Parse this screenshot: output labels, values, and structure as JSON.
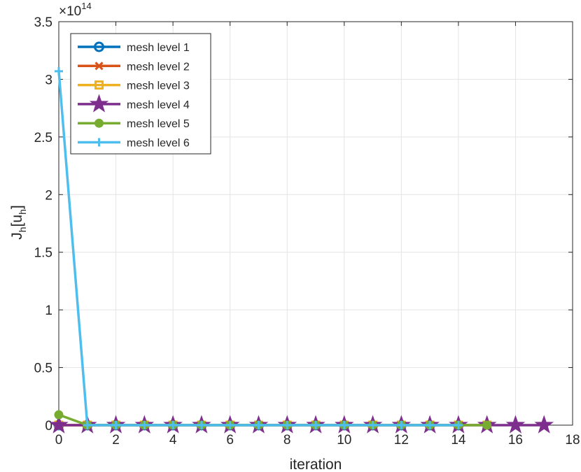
{
  "chart_data": {
    "type": "line",
    "title": "",
    "xlabel": "iteration",
    "ylabel": "J_h[u_h]",
    "ylabel_main": "J",
    "ylabel_sub1": "h",
    "ylabel_mid": "[u",
    "ylabel_sub2": "h",
    "ylabel_end": "]",
    "y_exponent_base": "×10",
    "y_exponent": "14",
    "y_scale_factor": 100000000000000.0,
    "xlim": [
      0,
      18
    ],
    "ylim": [
      0,
      3.5
    ],
    "xticks": [
      0,
      2,
      4,
      6,
      8,
      10,
      12,
      14,
      16,
      18
    ],
    "yticks": [
      0,
      0.5,
      1,
      1.5,
      2,
      2.5,
      3,
      3.5
    ],
    "ytick_labels": [
      "0",
      "0.5",
      "1",
      "1.5",
      "2",
      "2.5",
      "3",
      "3.5"
    ],
    "grid": true,
    "legend_position": "top-left",
    "series": [
      {
        "name": "mesh level 1",
        "color": "#0072BD",
        "marker": "circle",
        "x": [
          0,
          1,
          2,
          3,
          4,
          5,
          6,
          7,
          8,
          9,
          10,
          11,
          12,
          13,
          14
        ],
        "y": [
          0,
          0,
          0,
          0,
          0,
          0,
          0,
          0,
          0,
          0,
          0,
          0,
          0,
          0,
          0
        ]
      },
      {
        "name": "mesh level 2",
        "color": "#D95319",
        "marker": "x-cross",
        "x": [
          0,
          1,
          2,
          3,
          4,
          5,
          6,
          7,
          8,
          9,
          10,
          11,
          12,
          13,
          14
        ],
        "y": [
          0,
          0,
          0,
          0,
          0,
          0,
          0,
          0,
          0,
          0,
          0,
          0,
          0,
          0,
          0
        ]
      },
      {
        "name": "mesh level 3",
        "color": "#EDB120",
        "marker": "square",
        "x": [
          0,
          1,
          2,
          3,
          4,
          5,
          6,
          7,
          8,
          9,
          10,
          11,
          12,
          13,
          14,
          15
        ],
        "y": [
          0,
          0,
          0,
          0,
          0,
          0,
          0,
          0,
          0,
          0,
          0,
          0,
          0,
          0,
          0,
          0
        ]
      },
      {
        "name": "mesh level 4",
        "color": "#7E2F8E",
        "marker": "pentagram",
        "x": [
          0,
          1,
          2,
          3,
          4,
          5,
          6,
          7,
          8,
          9,
          10,
          11,
          12,
          13,
          14,
          15,
          16,
          17
        ],
        "y": [
          0,
          0,
          0,
          0,
          0,
          0,
          0,
          0,
          0,
          0,
          0,
          0,
          0,
          0,
          0,
          0,
          0,
          0
        ]
      },
      {
        "name": "mesh level 5",
        "color": "#77AC30",
        "marker": "dot",
        "x": [
          0,
          1,
          2,
          3,
          4,
          5,
          6,
          7,
          8,
          9,
          10,
          11,
          12,
          13,
          14,
          15
        ],
        "y": [
          0.09,
          0,
          0,
          0,
          0,
          0,
          0,
          0,
          0,
          0,
          0,
          0,
          0,
          0,
          0,
          0
        ]
      },
      {
        "name": "mesh level 6",
        "color": "#4DBEEE",
        "marker": "plus",
        "x": [
          0,
          1,
          2,
          3,
          4,
          5,
          6,
          7,
          8,
          9,
          10,
          11,
          12,
          13,
          14
        ],
        "y": [
          3.07,
          0,
          0,
          0,
          0,
          0,
          0,
          0,
          0,
          0,
          0,
          0,
          0,
          0,
          0
        ]
      }
    ]
  }
}
